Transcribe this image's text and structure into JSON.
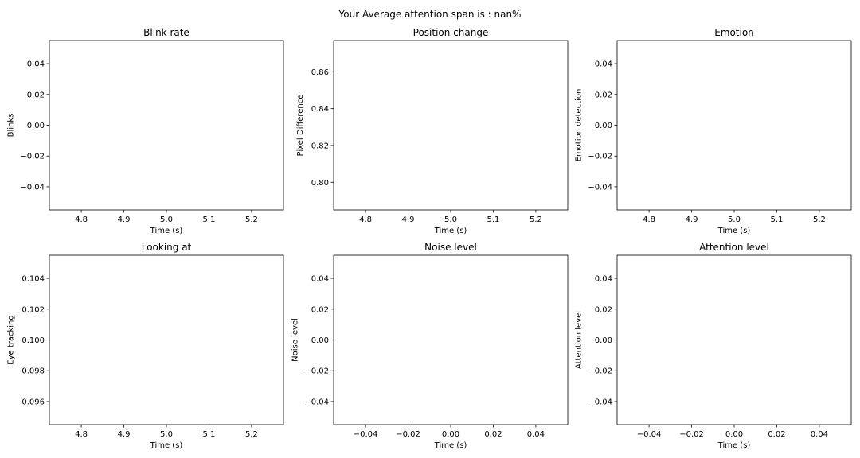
{
  "figure": {
    "suptitle": "Your Average attention span is : nan%"
  },
  "chart_data": [
    {
      "type": "line",
      "title": "Blink rate",
      "xlabel": "Time (s)",
      "ylabel": "Blinks",
      "xlim": [
        4.725,
        5.275
      ],
      "ylim": [
        -0.055,
        0.055
      ],
      "xticks": [
        4.8,
        4.9,
        5.0,
        5.1,
        5.2
      ],
      "xtick_labels": [
        "4.8",
        "4.9",
        "5.0",
        "5.1",
        "5.2"
      ],
      "yticks": [
        -0.04,
        -0.02,
        0.0,
        0.02,
        0.04
      ],
      "ytick_labels": [
        "−0.04",
        "−0.02",
        "0.00",
        "0.02",
        "0.04"
      ],
      "series": [],
      "grid": false
    },
    {
      "type": "line",
      "title": "Position change",
      "xlabel": "Time (s)",
      "ylabel": "Pixel Difference",
      "xlim": [
        4.725,
        5.275
      ],
      "ylim": [
        0.785,
        0.877
      ],
      "xticks": [
        4.8,
        4.9,
        5.0,
        5.1,
        5.2
      ],
      "xtick_labels": [
        "4.8",
        "4.9",
        "5.0",
        "5.1",
        "5.2"
      ],
      "yticks": [
        0.8,
        0.82,
        0.84,
        0.86
      ],
      "ytick_labels": [
        "0.80",
        "0.82",
        "0.84",
        "0.86"
      ],
      "series": [],
      "grid": false
    },
    {
      "type": "line",
      "title": "Emotion",
      "xlabel": "Time (s)",
      "ylabel": "Emotion detection",
      "xlim": [
        4.725,
        5.275
      ],
      "ylim": [
        -0.055,
        0.055
      ],
      "xticks": [
        4.8,
        4.9,
        5.0,
        5.1,
        5.2
      ],
      "xtick_labels": [
        "4.8",
        "4.9",
        "5.0",
        "5.1",
        "5.2"
      ],
      "yticks": [
        -0.04,
        -0.02,
        0.0,
        0.02,
        0.04
      ],
      "ytick_labels": [
        "−0.04",
        "−0.02",
        "0.00",
        "0.02",
        "0.04"
      ],
      "series": [],
      "grid": false
    },
    {
      "type": "line",
      "title": "Looking at",
      "xlabel": "Time (s)",
      "ylabel": "Eye tracking",
      "xlim": [
        4.725,
        5.275
      ],
      "ylim": [
        0.0945,
        0.1055
      ],
      "xticks": [
        4.8,
        4.9,
        5.0,
        5.1,
        5.2
      ],
      "xtick_labels": [
        "4.8",
        "4.9",
        "5.0",
        "5.1",
        "5.2"
      ],
      "yticks": [
        0.096,
        0.098,
        0.1,
        0.102,
        0.104
      ],
      "ytick_labels": [
        "0.096",
        "0.098",
        "0.100",
        "0.102",
        "0.104"
      ],
      "series": [],
      "grid": false
    },
    {
      "type": "line",
      "title": "Noise level",
      "xlabel": "Time (s)",
      "ylabel": "Noise level",
      "xlim": [
        -0.055,
        0.055
      ],
      "ylim": [
        -0.055,
        0.055
      ],
      "xticks": [
        -0.04,
        -0.02,
        0.0,
        0.02,
        0.04
      ],
      "xtick_labels": [
        "−0.04",
        "−0.02",
        "0.00",
        "0.02",
        "0.04"
      ],
      "yticks": [
        -0.04,
        -0.02,
        0.0,
        0.02,
        0.04
      ],
      "ytick_labels": [
        "−0.04",
        "−0.02",
        "0.00",
        "0.02",
        "0.04"
      ],
      "series": [],
      "grid": false
    },
    {
      "type": "line",
      "title": "Attention level",
      "xlabel": "Time (s)",
      "ylabel": "Attention level",
      "xlim": [
        -0.055,
        0.055
      ],
      "ylim": [
        -0.055,
        0.055
      ],
      "xticks": [
        -0.04,
        -0.02,
        0.0,
        0.02,
        0.04
      ],
      "xtick_labels": [
        "−0.04",
        "−0.02",
        "0.00",
        "0.02",
        "0.04"
      ],
      "yticks": [
        -0.04,
        -0.02,
        0.0,
        0.02,
        0.04
      ],
      "ytick_labels": [
        "−0.04",
        "−0.02",
        "0.00",
        "0.02",
        "0.04"
      ],
      "series": [],
      "grid": false
    }
  ]
}
